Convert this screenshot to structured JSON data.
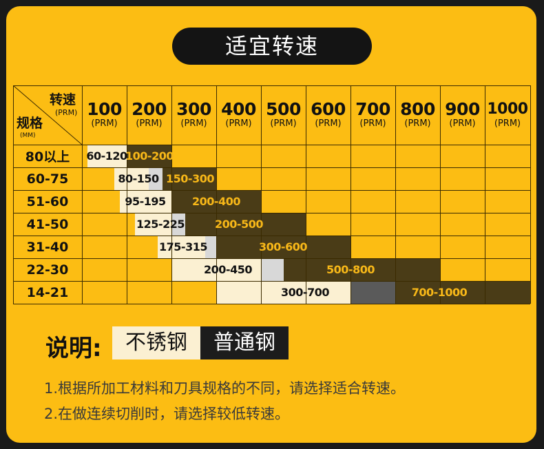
{
  "title": "适宜转速",
  "corner": {
    "top": "转速",
    "top_unit": "(PRM)",
    "left": "规格",
    "left_unit": "(MM)"
  },
  "columns": [
    {
      "num": "100",
      "unit": "(PRM)"
    },
    {
      "num": "200",
      "unit": "(PRM)"
    },
    {
      "num": "300",
      "unit": "(PRM)"
    },
    {
      "num": "400",
      "unit": "(PRM)"
    },
    {
      "num": "500",
      "unit": "(PRM)"
    },
    {
      "num": "600",
      "unit": "(PRM)"
    },
    {
      "num": "700",
      "unit": "(PRM)"
    },
    {
      "num": "800",
      "unit": "(PRM)"
    },
    {
      "num": "900",
      "unit": "(PRM)"
    },
    {
      "num": "1000",
      "unit": "(PRM)"
    }
  ],
  "rows": [
    {
      "label": "80以上",
      "stainless": "60-120",
      "normal": "100-200"
    },
    {
      "label": "60-75",
      "stainless": "80-150",
      "normal": "150-300"
    },
    {
      "label": "51-60",
      "stainless": "95-195",
      "normal": "200-400"
    },
    {
      "label": "41-50",
      "stainless": "125-225",
      "normal": "200-500"
    },
    {
      "label": "31-40",
      "stainless": "175-315",
      "normal": "300-600"
    },
    {
      "label": "22-30",
      "stainless": "200-450",
      "normal": "500-800"
    },
    {
      "label": "14-21",
      "stainless": "300-700",
      "normal": "700-1000"
    }
  ],
  "legend": {
    "label": "说明:",
    "stainless": "不锈钢",
    "normal": "普通钢"
  },
  "notes": [
    "1.根据所加工材料和刀具规格的不同，请选择适合转速。",
    "2.在做连续切削时，请选择较低转速。"
  ],
  "colors": {
    "background": "#fcbd13",
    "stainless": "#fbf0d2",
    "normal": "#4a3c17",
    "overlap": "#d8d8d8",
    "normal_text": "#f8b818"
  }
}
